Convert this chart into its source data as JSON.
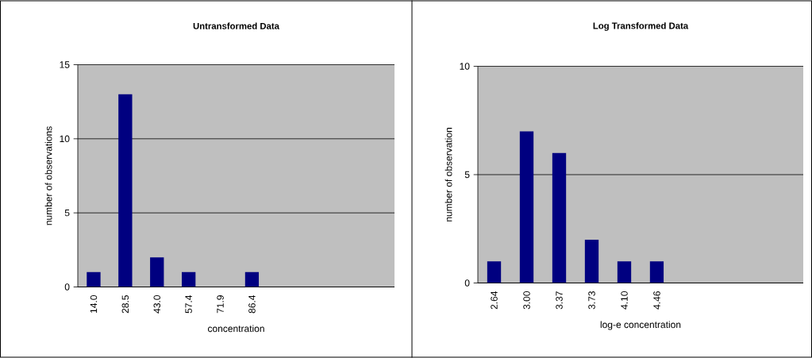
{
  "chart_data": [
    {
      "type": "bar",
      "title": "Untransformed Data",
      "xlabel": "concentration",
      "ylabel": "number of observations",
      "categories": [
        "14.0",
        "28.5",
        "43.0",
        "57.4",
        "71.9",
        "86.4",
        null,
        null,
        null,
        null
      ],
      "values": [
        1,
        13,
        2,
        1,
        0,
        1,
        null,
        null,
        null,
        null
      ],
      "color": "#000080",
      "ylim": [
        0,
        15
      ],
      "yticks": [
        0,
        5,
        10,
        15
      ],
      "grid": "y"
    },
    {
      "type": "bar",
      "title": "Log Transformed Data",
      "xlabel": "log-e concentration",
      "ylabel": "number of observation",
      "categories": [
        "2.64",
        "3.00",
        "3.37",
        "3.73",
        "4.10",
        "4.46",
        null,
        null,
        null,
        null
      ],
      "values": [
        1,
        7,
        6,
        2,
        1,
        1,
        null,
        null,
        null,
        null
      ],
      "color": "#000080",
      "ylim": [
        0,
        10
      ],
      "yticks": [
        0,
        5,
        10
      ],
      "grid": "y"
    }
  ]
}
